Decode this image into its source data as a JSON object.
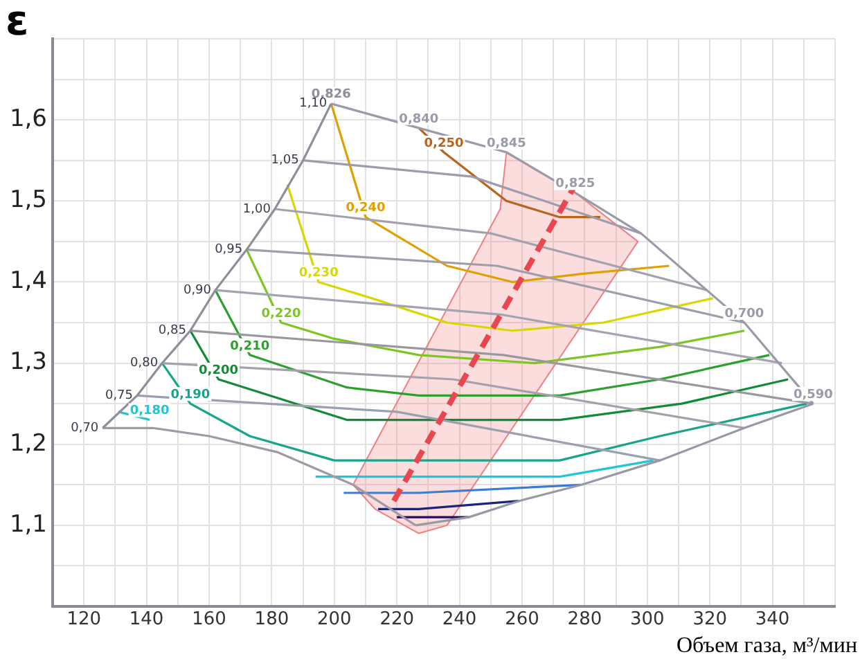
{
  "chart_data": {
    "type": "line",
    "ylabel": "ε",
    "xlabel": "Объем газа, м³/мин",
    "grid": true,
    "xlim": [
      110,
      360
    ],
    "xticks": [
      {
        "value": 110,
        "label": null
      },
      120,
      {
        "value": 130,
        "label": null
      },
      140,
      {
        "value": 150,
        "label": null
      },
      160,
      {
        "value": 170,
        "label": null
      },
      180,
      {
        "value": 190,
        "label": null
      },
      200,
      {
        "value": 210,
        "label": null
      },
      220,
      {
        "value": 230,
        "label": null
      },
      240,
      {
        "value": 250,
        "label": null
      },
      260,
      {
        "value": 270,
        "label": null
      },
      280,
      {
        "value": 290,
        "label": null
      },
      300,
      {
        "value": 310,
        "label": null
      },
      320,
      {
        "value": 330,
        "label": null
      },
      340,
      {
        "value": 350,
        "label": null
      },
      {
        "value": 360,
        "label": null
      }
    ],
    "ylim": [
      1.0,
      1.7
    ],
    "yticks": [
      {
        "value": 1.0,
        "label": null
      },
      {
        "value": 1.05,
        "label": null
      },
      {
        "value": 1.1,
        "label": "1,1"
      },
      {
        "value": 1.15,
        "label": null
      },
      {
        "value": 1.2,
        "label": "1,2"
      },
      {
        "value": 1.25,
        "label": null
      },
      {
        "value": 1.3,
        "label": "1,3"
      },
      {
        "value": 1.35,
        "label": null
      },
      {
        "value": 1.4,
        "label": "1,4"
      },
      {
        "value": 1.45,
        "label": null
      },
      {
        "value": 1.5,
        "label": "1,5"
      },
      {
        "value": 1.55,
        "label": null
      },
      {
        "value": 1.6,
        "label": "1,6"
      },
      {
        "value": 1.65,
        "label": null
      },
      {
        "value": 1.7,
        "label": null
      }
    ],
    "series": [
      {
        "color": "#e8474f",
        "line_style": "dashed",
        "x": [
          219,
          277
        ],
        "values": [
          1.13,
          1.52
        ]
      },
      {
        "color": "#8e8e9c",
        "x": [
          126,
          137,
          145,
          154,
          162,
          172,
          181,
          190,
          199
        ],
        "values": [
          1.22,
          1.26,
          1.3,
          1.34,
          1.39,
          1.44,
          1.49,
          1.55,
          1.62
        ]
      },
      {
        "name": "1,10",
        "color": "#9a9aa8",
        "x": [
          199,
          227,
          255,
          277,
          298,
          319,
          331,
          353
        ],
        "values": [
          1.62,
          1.59,
          1.56,
          1.51,
          1.46,
          1.39,
          1.35,
          1.25
        ]
      },
      {
        "color": "#969aa6",
        "x": [
          353,
          331,
          304,
          279,
          259,
          243,
          226
        ],
        "values": [
          1.25,
          1.22,
          1.18,
          1.15,
          1.13,
          1.11,
          1.1
        ]
      },
      {
        "name": "0,70",
        "color": "#a09aa6",
        "x": [
          126,
          142,
          160,
          182,
          206,
          226
        ],
        "values": [
          1.22,
          1.22,
          1.21,
          1.19,
          1.15,
          1.1
        ]
      },
      {
        "name": "1,05",
        "color": "#9c9caa",
        "x": [
          190,
          244,
          298
        ],
        "values": [
          1.55,
          1.53,
          1.46
        ]
      },
      {
        "name": "1,00",
        "color": "#a2a2ae",
        "x": [
          181,
          250,
          319
        ],
        "values": [
          1.49,
          1.46,
          1.39
        ]
      },
      {
        "name": "0,95",
        "color": "#9e9eab",
        "x": [
          172,
          252,
          331
        ],
        "values": [
          1.44,
          1.42,
          1.35
        ]
      },
      {
        "name": "0,90",
        "color": "#a4a4b0",
        "x": [
          162,
          253,
          343
        ],
        "values": [
          1.39,
          1.36,
          1.3
        ]
      },
      {
        "name": "0,85",
        "color": "#98989f",
        "x": [
          154,
          254,
          353
        ],
        "values": [
          1.34,
          1.31,
          1.25
        ]
      },
      {
        "name": "0,80",
        "color": "#a6a0ac",
        "x": [
          145,
          238,
          331
        ],
        "values": [
          1.3,
          1.28,
          1.22
        ]
      },
      {
        "name": "0,75",
        "color": "#9aa0ae",
        "x": [
          137,
          220,
          304
        ],
        "values": [
          1.26,
          1.24,
          1.18
        ]
      },
      {
        "color": "#b5651d",
        "x": [
          227,
          235,
          255,
          272,
          285
        ],
        "values": [
          1.59,
          1.56,
          1.5,
          1.48,
          1.48
        ]
      },
      {
        "color": "#e0a000",
        "x": [
          199,
          210,
          236,
          257,
          279,
          307
        ],
        "values": [
          1.62,
          1.48,
          1.42,
          1.4,
          1.41,
          1.42
        ]
      },
      {
        "color": "#d8d800",
        "x": [
          185,
          195,
          212,
          236,
          257,
          286,
          321
        ],
        "values": [
          1.52,
          1.4,
          1.38,
          1.35,
          1.34,
          1.35,
          1.38
        ]
      },
      {
        "color": "#7cc522",
        "x": [
          172,
          183,
          200,
          227,
          264,
          304,
          331
        ],
        "values": [
          1.44,
          1.35,
          1.33,
          1.31,
          1.3,
          1.32,
          1.34
        ]
      },
      {
        "color": "#2ca02c",
        "x": [
          162,
          173,
          204,
          227,
          272,
          304,
          339
        ],
        "values": [
          1.39,
          1.31,
          1.27,
          1.26,
          1.26,
          1.28,
          1.31
        ]
      },
      {
        "color": "#138a36",
        "x": [
          154,
          163,
          204,
          227,
          272,
          311,
          345
        ],
        "values": [
          1.34,
          1.28,
          1.23,
          1.23,
          1.23,
          1.25,
          1.28
        ]
      },
      {
        "color": "#17a589",
        "x": [
          145,
          154,
          173,
          200,
          227,
          272,
          304,
          351
        ],
        "values": [
          1.3,
          1.25,
          1.21,
          1.18,
          1.18,
          1.18,
          1.21,
          1.25
        ]
      },
      {
        "color": "#1fc6d6",
        "x": [
          131,
          141,
          170,
          194,
          227,
          272,
          302
        ],
        "values": [
          1.24,
          1.23,
          null,
          1.16,
          1.16,
          1.16,
          1.18
        ]
      },
      {
        "color": "#3a7bd5",
        "x": [
          203,
          227,
          279
        ],
        "values": [
          1.14,
          1.14,
          1.15
        ]
      },
      {
        "color": "#1a237e",
        "x": [
          214,
          227,
          259
        ],
        "values": [
          1.12,
          1.12,
          1.13
        ]
      },
      {
        "color": "#2a0a5e",
        "x": [
          220,
          243
        ],
        "values": [
          1.11,
          1.11
        ]
      },
      {
        "type": "area",
        "color": "#f08080",
        "x": [
          206,
          253,
          255,
          277,
          297,
          236,
          227,
          213,
          206
        ],
        "values": [
          1.15,
          1.49,
          1.56,
          1.51,
          1.45,
          1.1,
          1.09,
          1.12,
          1.15
        ]
      }
    ],
    "annotations": [
      {
        "text": "0,250",
        "x": 235,
        "y": 1.56
      },
      {
        "text": "0,240",
        "x": 210,
        "y": 1.48
      },
      {
        "text": "0,230",
        "x": 195,
        "y": 1.4
      },
      {
        "text": "0,220",
        "x": 183,
        "y": 1.35
      },
      {
        "text": "0,210",
        "x": 173,
        "y": 1.31
      },
      {
        "text": "0,200",
        "x": 163,
        "y": 1.28
      },
      {
        "text": "0,190",
        "x": 154,
        "y": 1.25
      },
      {
        "text": "0,180",
        "x": 141,
        "y": 1.23
      },
      {
        "text": "0,826",
        "x": 199,
        "y": 1.62
      },
      {
        "text": "0,840",
        "x": 227,
        "y": 1.59
      },
      {
        "text": "0,845",
        "x": 255,
        "y": 1.56
      },
      {
        "text": "0,825",
        "x": 277,
        "y": 1.51
      },
      {
        "text": "0,700",
        "x": 331,
        "y": 1.35
      },
      {
        "text": "0,590",
        "x": 353,
        "y": 1.25
      }
    ]
  }
}
